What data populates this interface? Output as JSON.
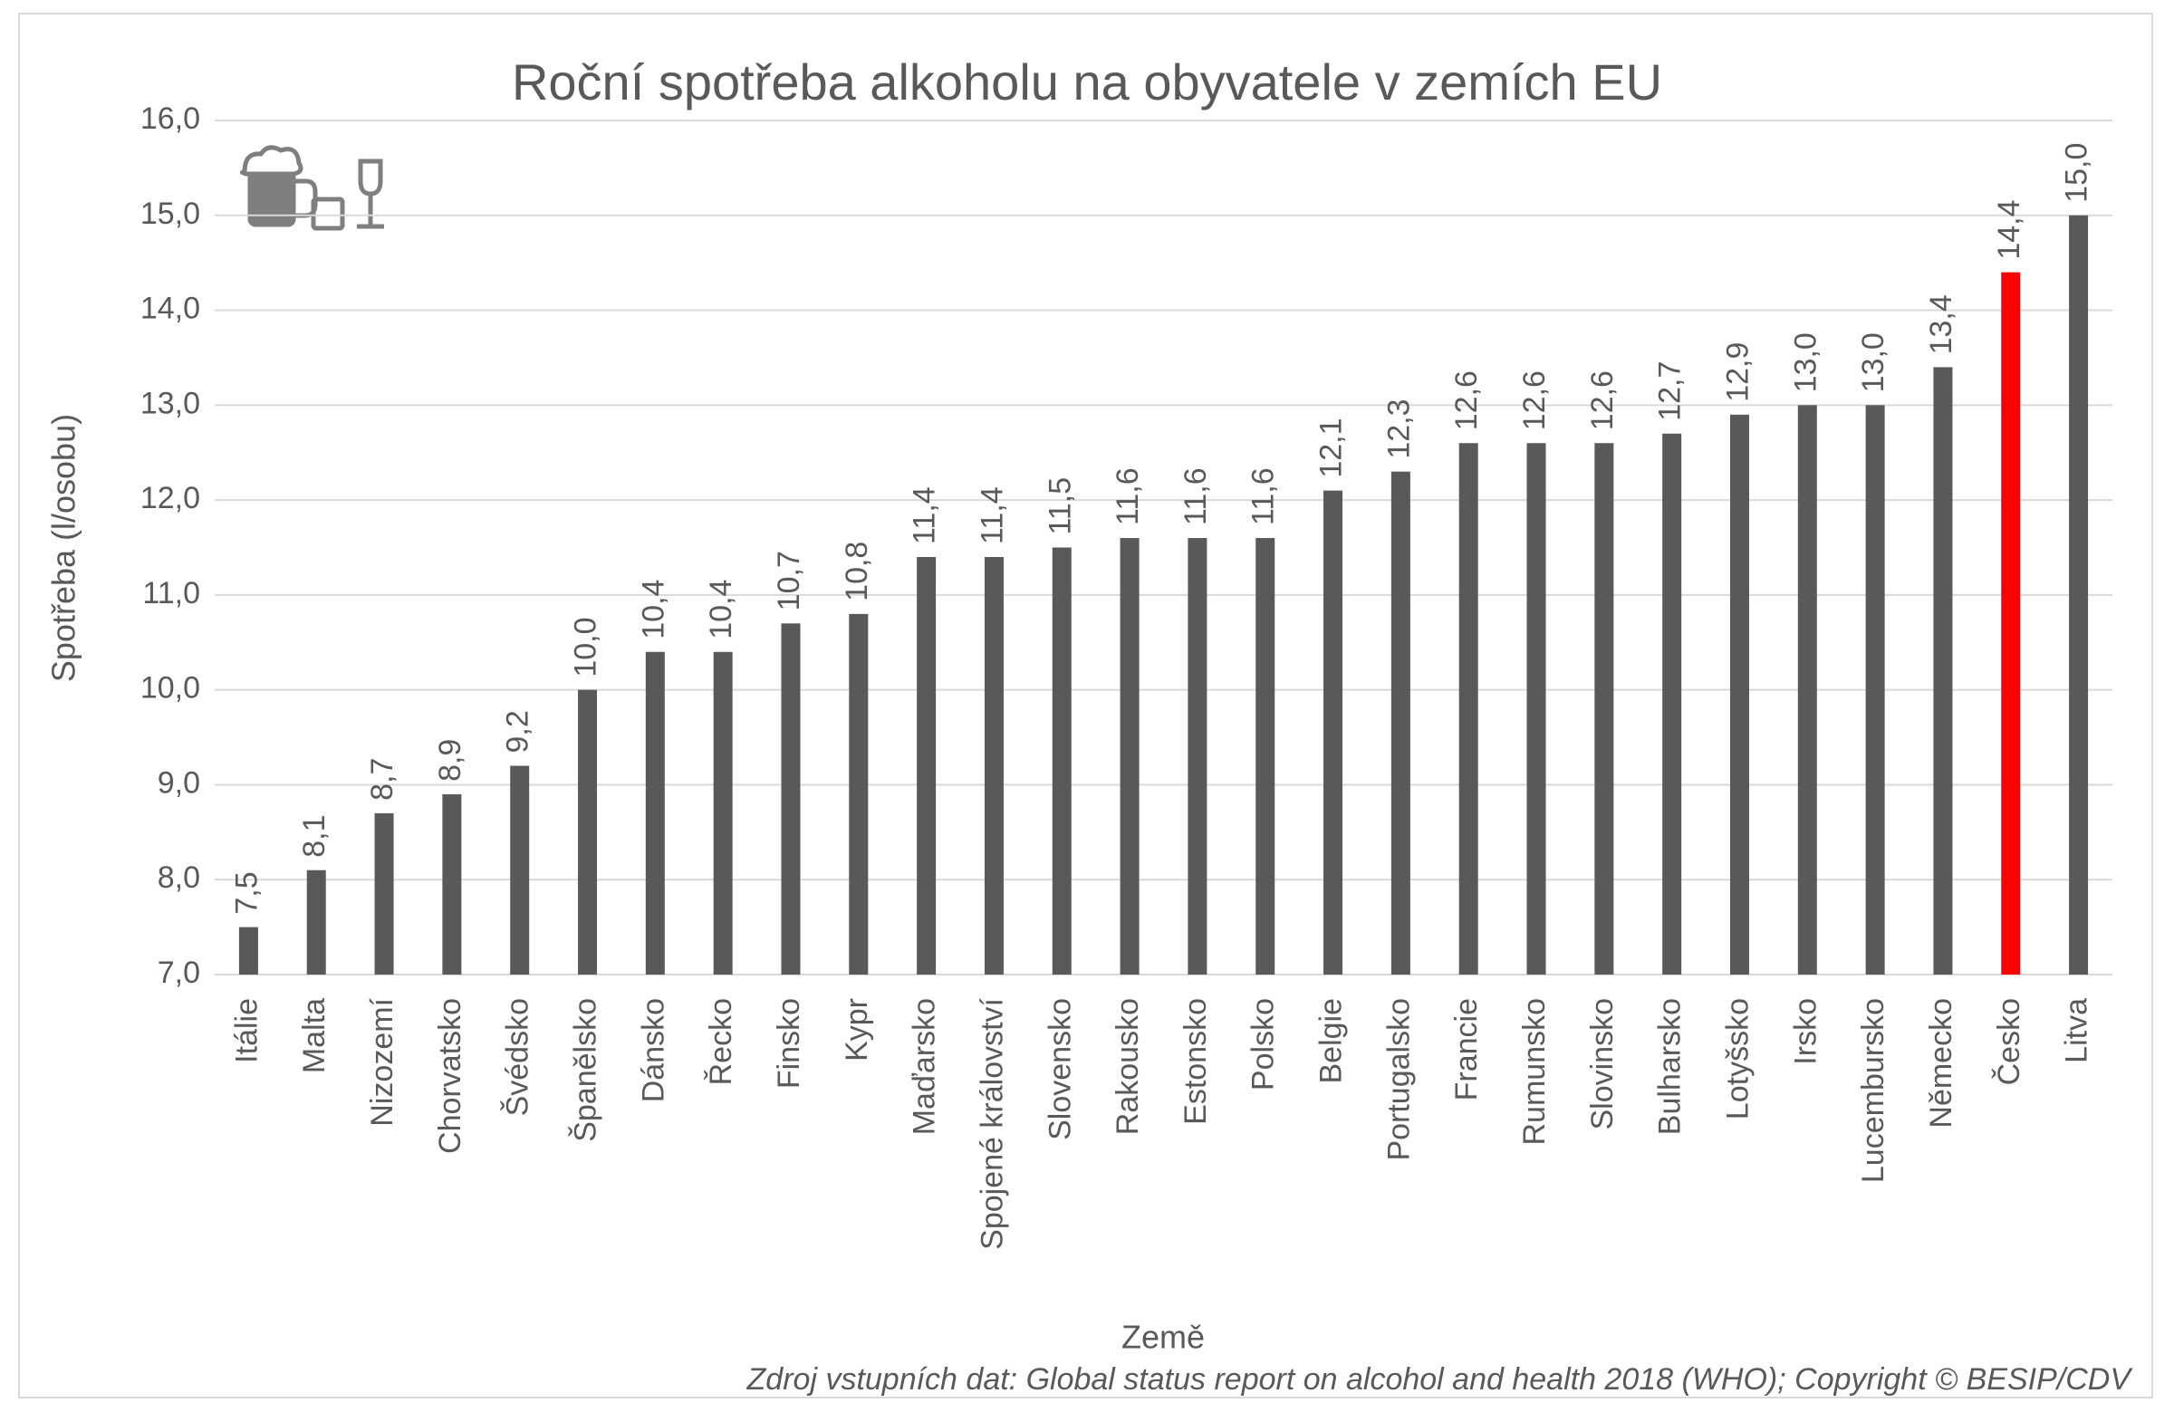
{
  "chart_data": {
    "type": "bar",
    "title": "Roční spotřeba alkoholu na obyvatele v zemích EU",
    "x_label": "Země",
    "y_label": "Spotřeba (l/osobu)",
    "source": "Zdroj vstupních dat: Global status report on alcohol and health 2018 (WHO); Copyright © BESIP/CDV",
    "categories": [
      "Itálie",
      "Malta",
      "Nizozemí",
      "Chorvatsko",
      "Švédsko",
      "Španělsko",
      "Dánsko",
      "Řecko",
      "Finsko",
      "Kypr",
      "Maďarsko",
      "Spojené království",
      "Slovensko",
      "Rakousko",
      "Estonsko",
      "Polsko",
      "Belgie",
      "Portugalsko",
      "Francie",
      "Rumunsko",
      "Slovinsko",
      "Bulharsko",
      "Lotyšsko",
      "Irsko",
      "Lucembursko",
      "Německo",
      "Česko",
      "Litva"
    ],
    "values": [
      7.5,
      8.1,
      8.7,
      8.9,
      9.2,
      10.0,
      10.4,
      10.4,
      10.7,
      10.8,
      11.4,
      11.4,
      11.5,
      11.6,
      11.6,
      11.6,
      12.1,
      12.3,
      12.6,
      12.6,
      12.6,
      12.7,
      12.9,
      13.0,
      13.0,
      13.4,
      14.4,
      15.0
    ],
    "value_labels": [
      "7,5",
      "8,1",
      "8,7",
      "8,9",
      "9,2",
      "10,0",
      "10,4",
      "10,4",
      "10,7",
      "10,8",
      "11,4",
      "11,4",
      "11,5",
      "11,6",
      "11,6",
      "11,6",
      "12,1",
      "12,3",
      "12,6",
      "12,6",
      "12,6",
      "12,7",
      "12,9",
      "13,0",
      "13,0",
      "13,4",
      "14,4",
      "15,0"
    ],
    "colors": [
      "#595959",
      "#595959",
      "#595959",
      "#595959",
      "#595959",
      "#595959",
      "#595959",
      "#595959",
      "#595959",
      "#595959",
      "#595959",
      "#595959",
      "#595959",
      "#595959",
      "#595959",
      "#595959",
      "#595959",
      "#595959",
      "#595959",
      "#595959",
      "#595959",
      "#595959",
      "#595959",
      "#595959",
      "#595959",
      "#595959",
      "#ff0000",
      "#595959"
    ],
    "ylim": [
      7,
      16
    ],
    "yticks": [
      {
        "value": 7,
        "label": "7,0"
      },
      {
        "value": 8,
        "label": "8,0"
      },
      {
        "value": 9,
        "label": "9,0"
      },
      {
        "value": 10,
        "label": "10,0"
      },
      {
        "value": 11,
        "label": "11,0"
      },
      {
        "value": 12,
        "label": "12,0"
      },
      {
        "value": 13,
        "label": "13,0"
      },
      {
        "value": 14,
        "label": "14,0"
      },
      {
        "value": 15,
        "label": "15,0"
      },
      {
        "value": 16,
        "label": "16,0"
      }
    ],
    "grid": true
  }
}
